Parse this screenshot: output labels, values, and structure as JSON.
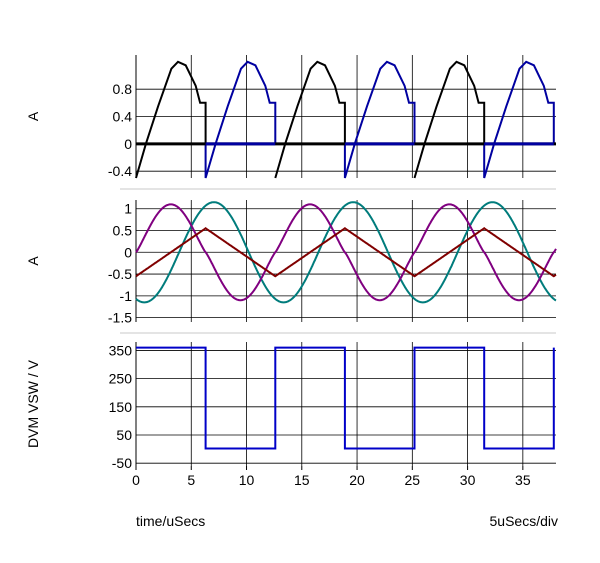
{
  "x_axis": {
    "label": "time/uSecs",
    "division": "5uSecs/div",
    "range": [
      0,
      38
    ],
    "ticks": [
      "0",
      "5",
      "10",
      "15",
      "20",
      "25",
      "30",
      "35"
    ]
  },
  "chart_data": [
    {
      "type": "line",
      "ylabel": "A",
      "ylim": [
        -0.5,
        1.3
      ],
      "yticks": [
        -0.4,
        0,
        0.4,
        0.8
      ],
      "ytick_labels": [
        "-0.4",
        "0",
        "0.4",
        "0.8"
      ],
      "grid": true,
      "series": [
        {
          "color": "#000000",
          "shape": "black-pulses",
          "points": [
            [
              0,
              -0.5
            ],
            [
              0.9,
              0
            ],
            [
              2,
              0.55
            ],
            [
              3.2,
              1.1
            ],
            [
              3.8,
              1.2
            ],
            [
              4.5,
              1.15
            ],
            [
              5.4,
              0.85
            ],
            [
              5.8,
              0.6
            ],
            [
              6.3,
              0.6
            ],
            [
              6.3,
              0
            ]
          ]
        },
        {
          "color": "#0000a0",
          "shape": "blue-pulses",
          "points": [
            [
              6.3,
              0
            ],
            [
              6.3,
              -0.5
            ],
            [
              7.2,
              0
            ],
            [
              8.3,
              0.55
            ],
            [
              9.5,
              1.1
            ],
            [
              10.1,
              1.2
            ],
            [
              10.8,
              1.15
            ],
            [
              11.7,
              0.85
            ],
            [
              12.1,
              0.6
            ],
            [
              12.6,
              0.6
            ],
            [
              12.6,
              0
            ]
          ]
        }
      ],
      "period": 12.6,
      "baseline": 0
    },
    {
      "type": "line",
      "ylabel": "A",
      "ylim": [
        -1.6,
        1.2
      ],
      "yticks": [
        -1.5,
        -1,
        -0.5,
        0,
        0.5,
        1
      ],
      "ytick_labels": [
        "-1.5",
        "-1",
        "-0.5",
        "0",
        "0.5",
        "1"
      ],
      "grid": true,
      "period": 12.6,
      "series": [
        {
          "color": "#007c7c",
          "kind": "sine",
          "amplitude": 1.15,
          "offset_x": 0.75
        },
        {
          "color": "#800080",
          "kind": "sine-flat",
          "amplitude": 1.1,
          "offset_x": 0
        },
        {
          "color": "#800000",
          "kind": "triangle",
          "amplitude": 0.55,
          "peak_x": 6.3
        }
      ]
    },
    {
      "type": "line",
      "ylabel": "DVM VSW / V",
      "ylim": [
        -60,
        380
      ],
      "yticks": [
        -50,
        50,
        150,
        250,
        350
      ],
      "ytick_labels": [
        "-50",
        "50",
        "150",
        "250",
        "350"
      ],
      "grid": true,
      "series": [
        {
          "color": "#0000c8",
          "points": [
            [
              0,
              360
            ],
            [
              6.3,
              360
            ],
            [
              6.3,
              2
            ],
            [
              12.6,
              2
            ],
            [
              12.6,
              360
            ],
            [
              18.9,
              360
            ],
            [
              18.9,
              2
            ],
            [
              25.2,
              2
            ],
            [
              25.2,
              360
            ],
            [
              31.5,
              360
            ],
            [
              31.5,
              2
            ],
            [
              37.8,
              2
            ],
            [
              37.8,
              360
            ]
          ]
        }
      ]
    }
  ]
}
